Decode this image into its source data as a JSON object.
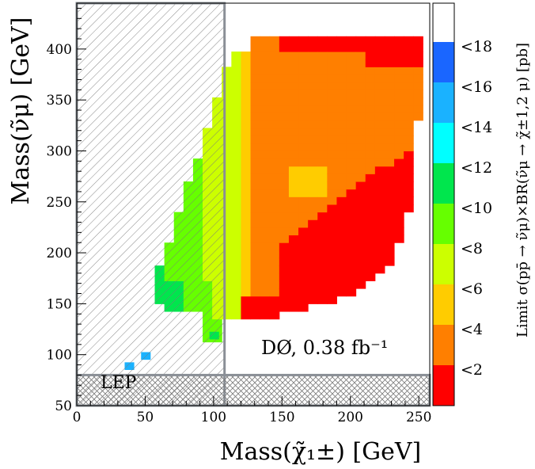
{
  "chart_data": {
    "type": "heatmap",
    "xlabel": "Mass(χ̃₁±) [GeV]",
    "ylabel": "Mass(ν̃μ) [GeV]",
    "xlim": [
      0,
      258
    ],
    "ylim": [
      50,
      445
    ],
    "x_ticks": [
      0,
      50,
      100,
      150,
      200,
      250
    ],
    "y_ticks": [
      50,
      100,
      150,
      200,
      250,
      300,
      350,
      400
    ],
    "colorbar": {
      "title": "Limit σ(pp̄ → ν̃μ)×BR(ν̃μ → χ̃±1,2 μ) [pb]",
      "bins": [
        {
          "max": 2,
          "label": "<2",
          "color": "#ff0000"
        },
        {
          "max": 4,
          "label": "<4",
          "color": "#ff7f00"
        },
        {
          "max": 6,
          "label": "<6",
          "color": "#ffcc00"
        },
        {
          "max": 8,
          "label": "<8",
          "color": "#ccff00"
        },
        {
          "max": 10,
          "label": "<10",
          "color": "#66ff00"
        },
        {
          "max": 12,
          "label": "<12",
          "color": "#00e64d"
        },
        {
          "max": 14,
          "label": "<14",
          "color": "#00ffff"
        },
        {
          "max": 16,
          "label": "<16",
          "color": "#1ab2ff"
        },
        {
          "max": 18,
          "label": "<18",
          "color": "#1a66ff"
        },
        {
          "max": 20,
          "label": "",
          "color": "#ffffff"
        }
      ]
    },
    "annotation": "DØ, 0.38 fb⁻¹",
    "lep_label": "LEP",
    "excluded_regions": [
      {
        "name": "hatched-left",
        "x": [
          0,
          108
        ],
        "y": [
          50,
          445
        ]
      },
      {
        "name": "lep",
        "x": [
          0,
          258
        ],
        "y": [
          50,
          80
        ]
      }
    ],
    "region_cells": [
      {
        "value": 5,
        "x": [
          130,
          144
        ],
        "y": [
          390,
          405
        ]
      },
      {
        "value": 5,
        "x": [
          144,
          158
        ],
        "y": [
          380,
          400
        ]
      },
      {
        "value": 3,
        "x": [
          158,
          215
        ],
        "y": [
          400,
          410
        ]
      },
      {
        "value": 1,
        "x": [
          215,
          245
        ],
        "y": [
          395,
          405
        ]
      }
    ]
  }
}
